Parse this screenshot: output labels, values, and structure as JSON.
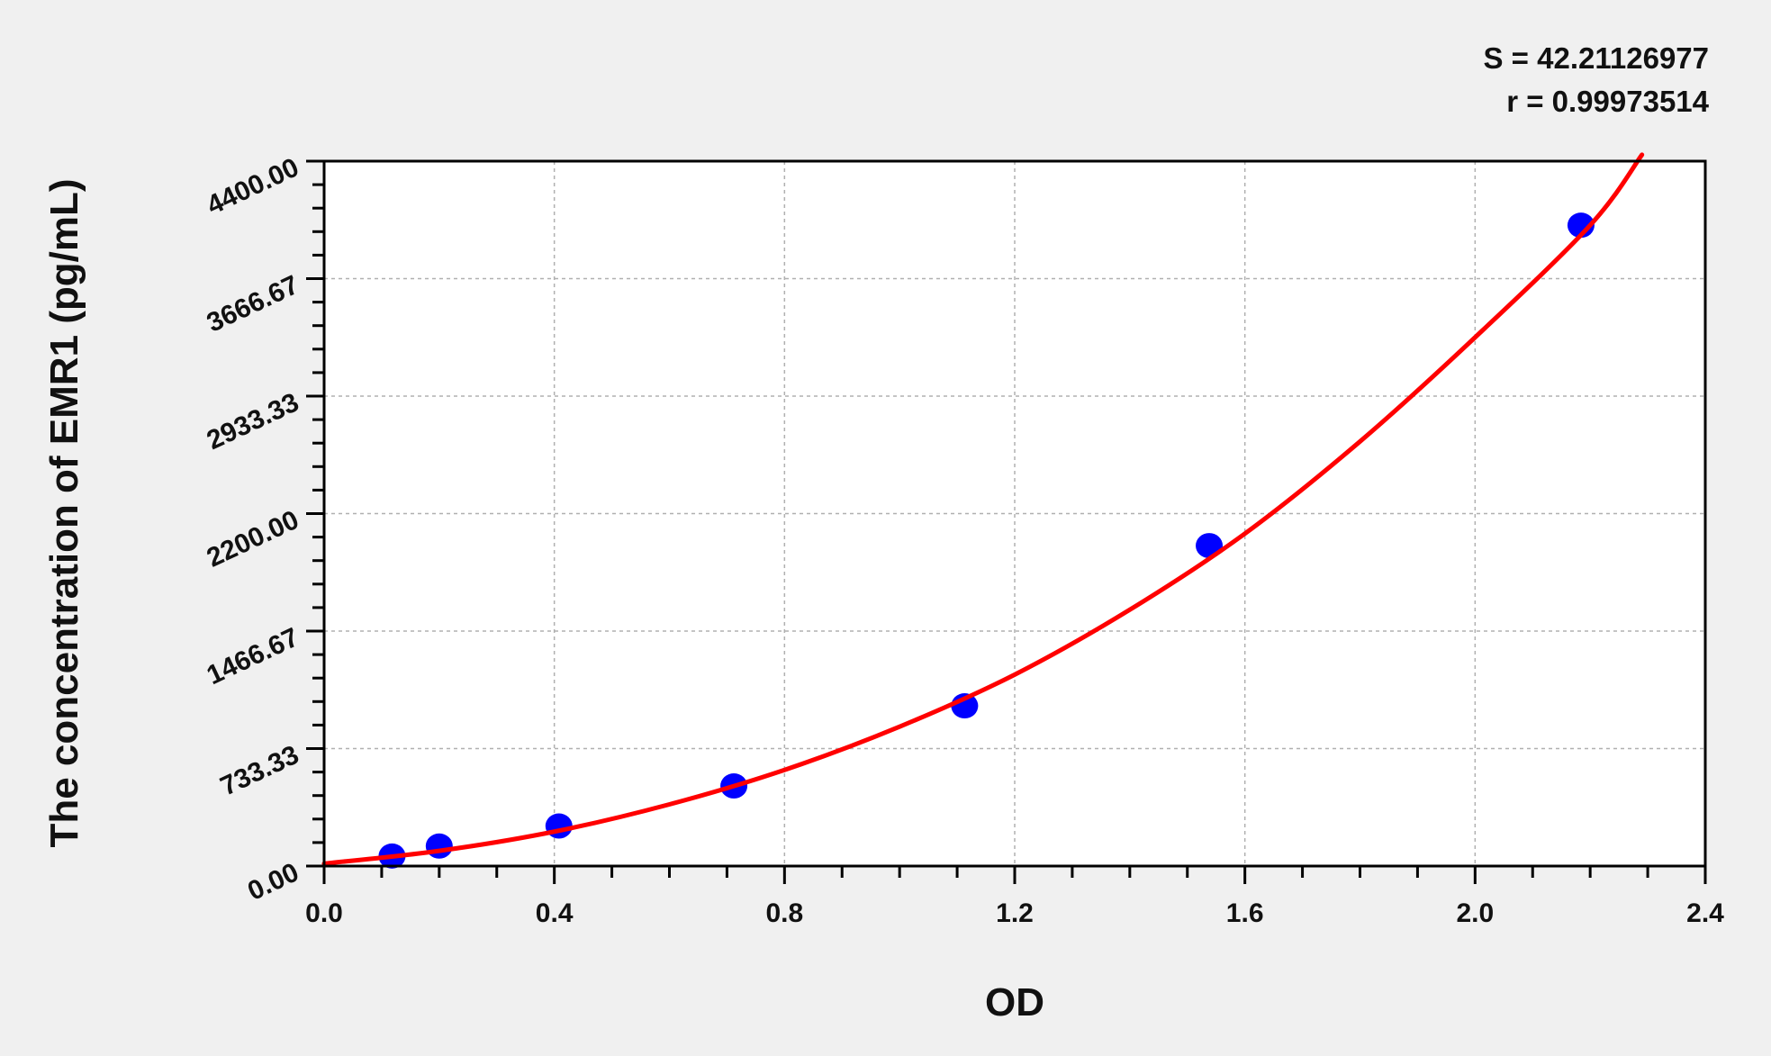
{
  "chart_data": {
    "type": "scatter",
    "title": "",
    "xlabel": "OD",
    "ylabel": "The concentration of EMR1 (pg/mL)",
    "xlim": [
      0,
      2.4
    ],
    "ylim": [
      0,
      4400
    ],
    "x_ticks": [
      "0.0",
      "0.4",
      "0.8",
      "1.2",
      "1.6",
      "2.0",
      "2.4"
    ],
    "y_ticks": [
      "0.00",
      "733.33",
      "1466.67",
      "2200.00",
      "2933.33",
      "3666.67",
      "4400.00"
    ],
    "grid": true,
    "legend": "none",
    "annotations": {
      "s": "S = 42.21126977",
      "r": "r = 0.99973514"
    },
    "points": {
      "color": "#0000ff",
      "x": [
        0.118,
        0.2,
        0.408,
        0.712,
        1.113,
        1.538,
        2.184
      ],
      "y": [
        62.5,
        125,
        250,
        500,
        1000,
        2000,
        4000
      ]
    },
    "fit_curve": {
      "color": "#ff0000",
      "x": [
        0.0,
        0.2,
        0.4,
        0.6,
        0.8,
        1.0,
        1.2,
        1.4,
        1.6,
        1.8,
        2.0,
        2.2,
        2.29
      ],
      "y": [
        15,
        95,
        215,
        385,
        600,
        870,
        1195,
        1600,
        2075,
        2650,
        3300,
        4000,
        4440
      ]
    }
  }
}
